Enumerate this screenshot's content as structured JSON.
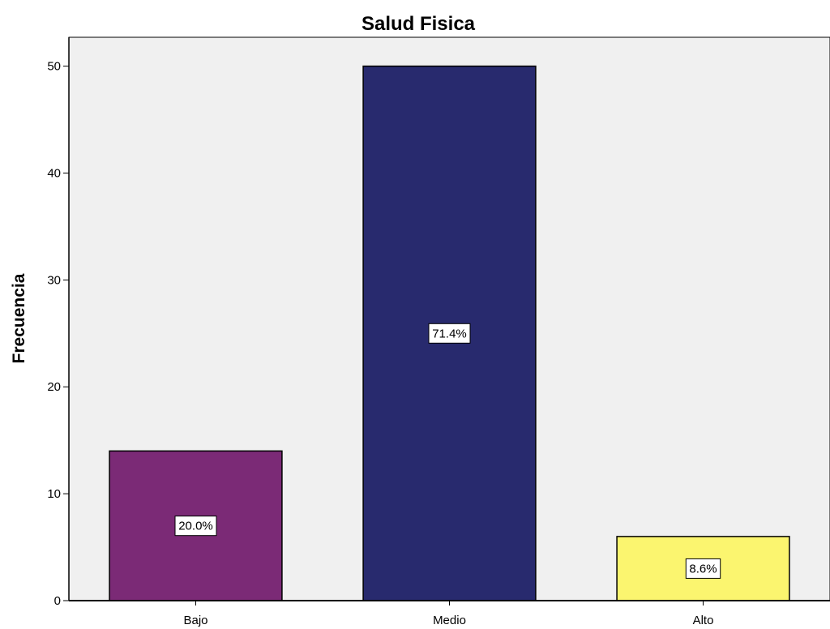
{
  "chart_data": {
    "type": "bar",
    "title": "Salud Fisica",
    "xlabel": "",
    "ylabel": "Frecuencia",
    "categories": [
      "Bajo",
      "Medio",
      "Alto"
    ],
    "values": [
      14,
      50,
      6
    ],
    "data_labels": [
      "20.0%",
      "71.4%",
      "8.6%"
    ],
    "colors": [
      "#7b2a76",
      "#282a6e",
      "#fbf56f"
    ],
    "ylim": [
      0,
      52.7
    ],
    "yticks": [
      0,
      10,
      20,
      30,
      40,
      50
    ],
    "ytick_labels": [
      "0",
      "10",
      "20",
      "30",
      "40",
      "50"
    ],
    "grid": false,
    "legend": "none",
    "plot_background": "#f0f0f0"
  }
}
